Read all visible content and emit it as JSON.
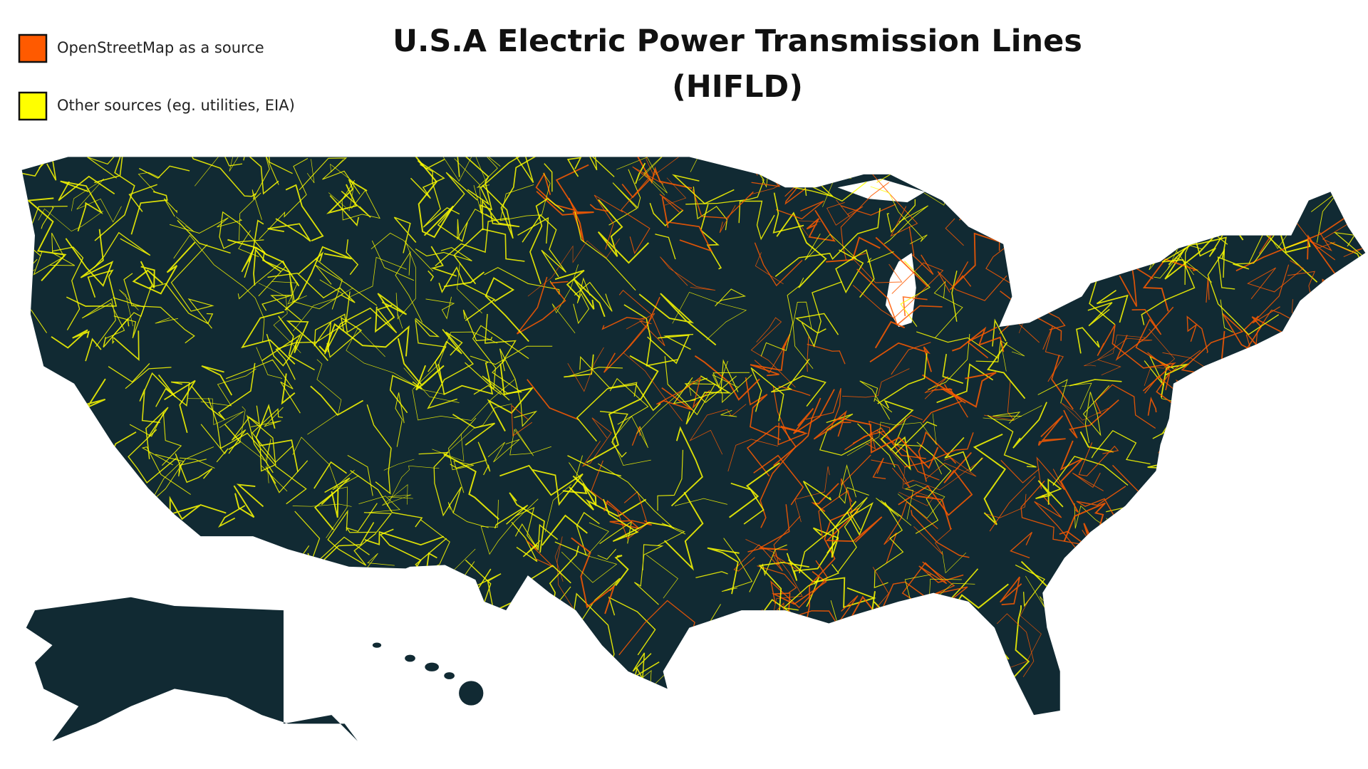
{
  "title": [
    "U.S.A Electric Power Transmission Lines",
    "(HIFLD)"
  ],
  "legend": [
    {
      "label": "OpenStreetMap as a source",
      "color": "#ff5a00"
    },
    {
      "label": "Other sources (eg. utilities, EIA)",
      "color": "#ffff00"
    }
  ]
}
